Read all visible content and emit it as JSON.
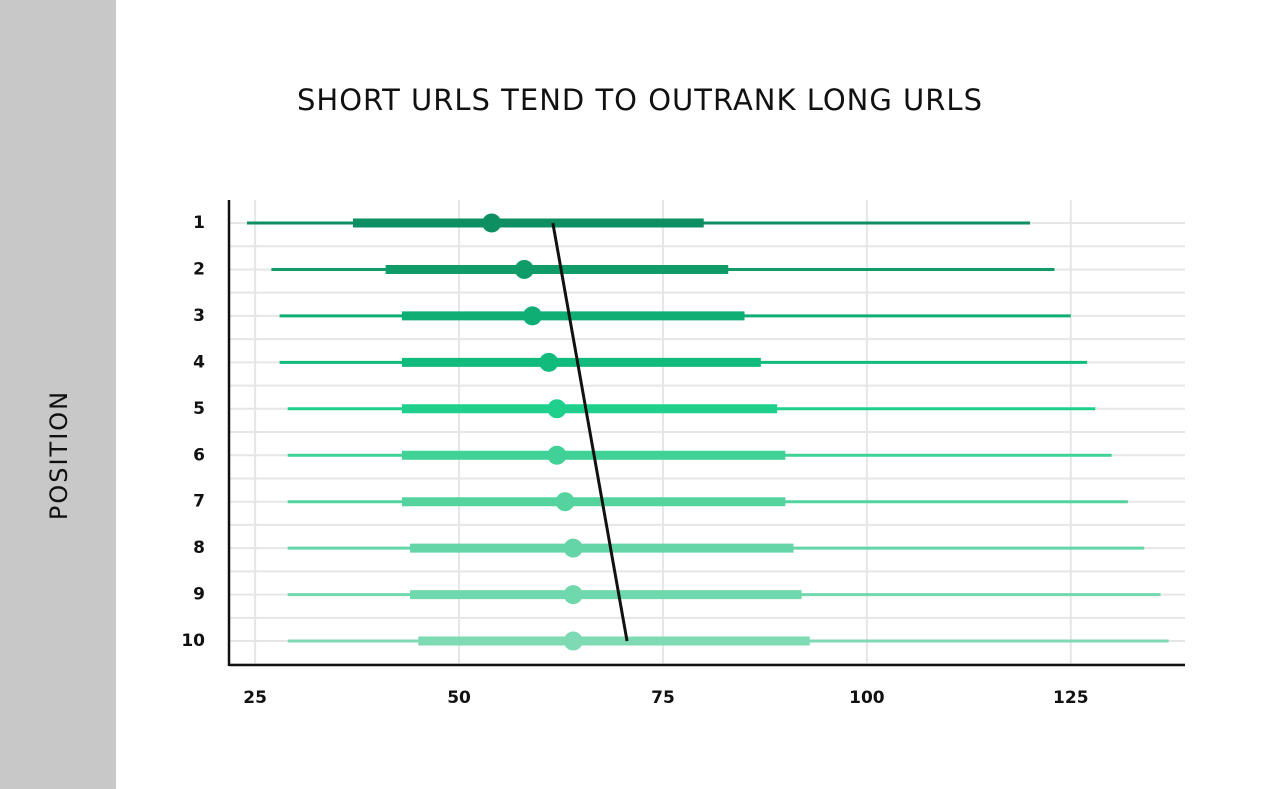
{
  "chart_data": {
    "type": "interval",
    "title": "SHORT URLS TEND TO OUTRANK LONG URLS",
    "y_label": "POSITION",
    "categories": [
      "1",
      "2",
      "3",
      "4",
      "5",
      "6",
      "7",
      "8",
      "9",
      "10"
    ],
    "whisker_low": [
      24,
      27,
      28,
      28,
      29,
      29,
      29,
      29,
      29,
      29
    ],
    "box_low": [
      37,
      41,
      43,
      43,
      43,
      43,
      43,
      44,
      44,
      45
    ],
    "values": [
      54,
      58,
      59,
      61,
      62,
      62,
      63,
      64,
      64,
      64
    ],
    "box_high": [
      80,
      83,
      85,
      87,
      89,
      90,
      90,
      91,
      92,
      93
    ],
    "whisker_high": [
      120,
      123,
      125,
      127,
      128,
      130,
      132,
      134,
      136,
      137
    ],
    "colors": [
      "#0e8f62",
      "#0f9c68",
      "#0fae74",
      "#10bb7c",
      "#1ed08c",
      "#3fd196",
      "#55d39f",
      "#63d5a6",
      "#6fd8ac",
      "#7ddab3"
    ],
    "trend": {
      "values": [
        61.5,
        70.6
      ],
      "color": "#111111"
    },
    "xlim": [
      21.8,
      139
    ],
    "xticks": [
      25,
      50,
      75,
      100,
      125
    ],
    "grid": true
  }
}
